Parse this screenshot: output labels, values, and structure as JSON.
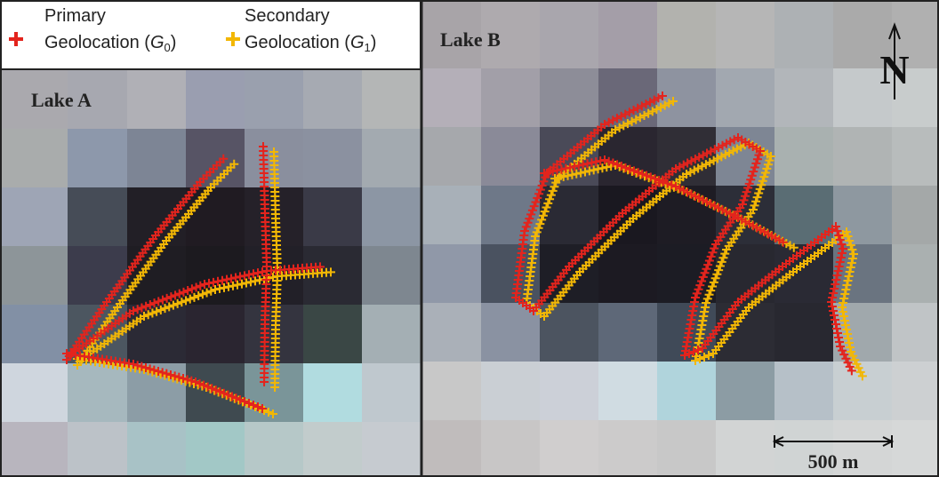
{
  "legend": {
    "items": [
      {
        "line1": "Primary",
        "line2": "Geolocation (",
        "symbol": "G",
        "subscript": "0",
        "close": ")",
        "color": "#e3241d"
      },
      {
        "line1": "Secondary",
        "line2": "Geolocation (",
        "symbol": "G",
        "subscript": "1",
        "close": ")",
        "color": "#f2b705"
      }
    ]
  },
  "panels": [
    {
      "label": "Lake A"
    },
    {
      "label": "Lake B"
    }
  ],
  "north_arrow": {
    "label": "N"
  },
  "scale_bar": {
    "label": "500 m"
  }
}
